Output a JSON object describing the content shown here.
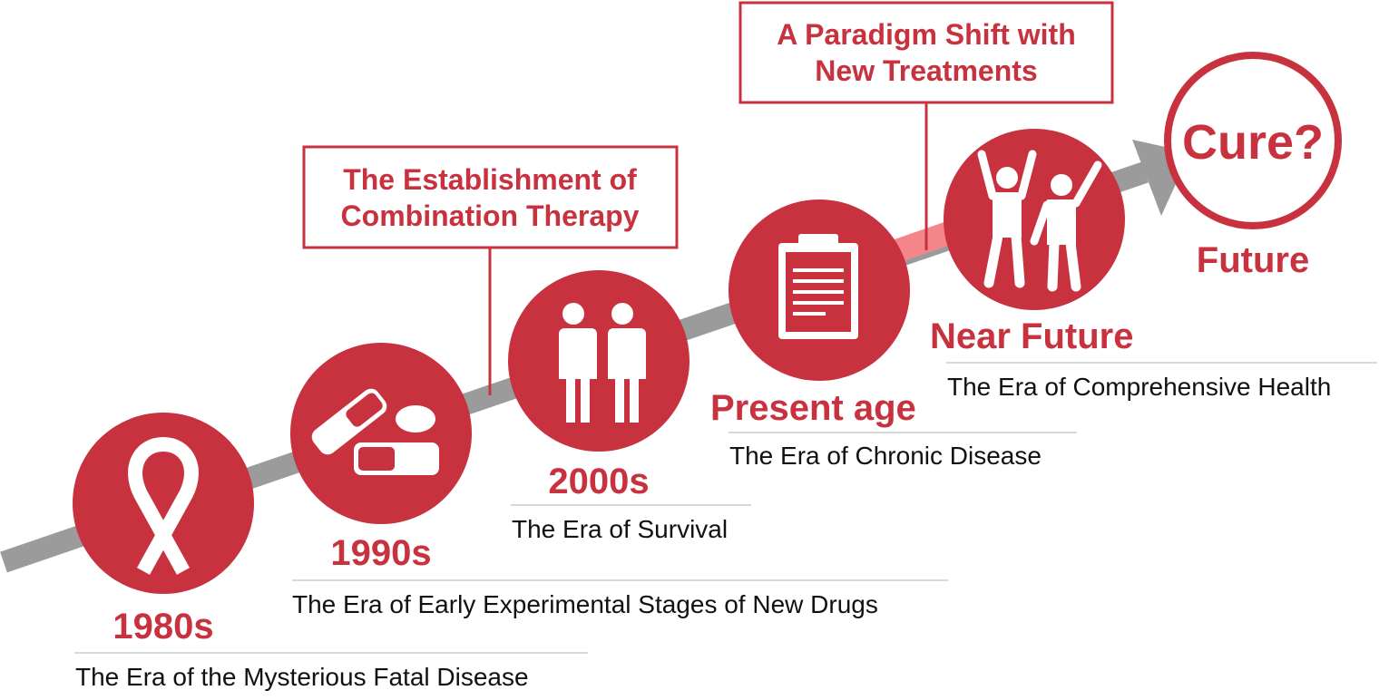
{
  "colors": {
    "accent": "#c8323f",
    "arrow": "#9b9b9b",
    "highlight": "#f4858b"
  },
  "milestones": [
    {
      "era": "1980s",
      "description": "The Era of the Mysterious Fatal Disease",
      "icon": "awareness-ribbon-icon"
    },
    {
      "era": "1990s",
      "description": "The Era of Early Experimental Stages of New Drugs",
      "icon": "pills-icon"
    },
    {
      "era": "2000s",
      "description": "The Era of Survival",
      "icon": "people-icon"
    },
    {
      "era": "Present age",
      "description": "The Era of Chronic Disease",
      "icon": "clipboard-icon"
    },
    {
      "era": "Near Future",
      "description": "The Era of Comprehensive Health",
      "icon": "celebrating-people-icon"
    },
    {
      "era": "Future",
      "circle_text": "Cure?"
    }
  ],
  "callouts": [
    {
      "lines": [
        "The Establishment of",
        "Combination Therapy"
      ]
    },
    {
      "lines": [
        "A Paradigm Shift with",
        "New Treatments"
      ]
    }
  ]
}
